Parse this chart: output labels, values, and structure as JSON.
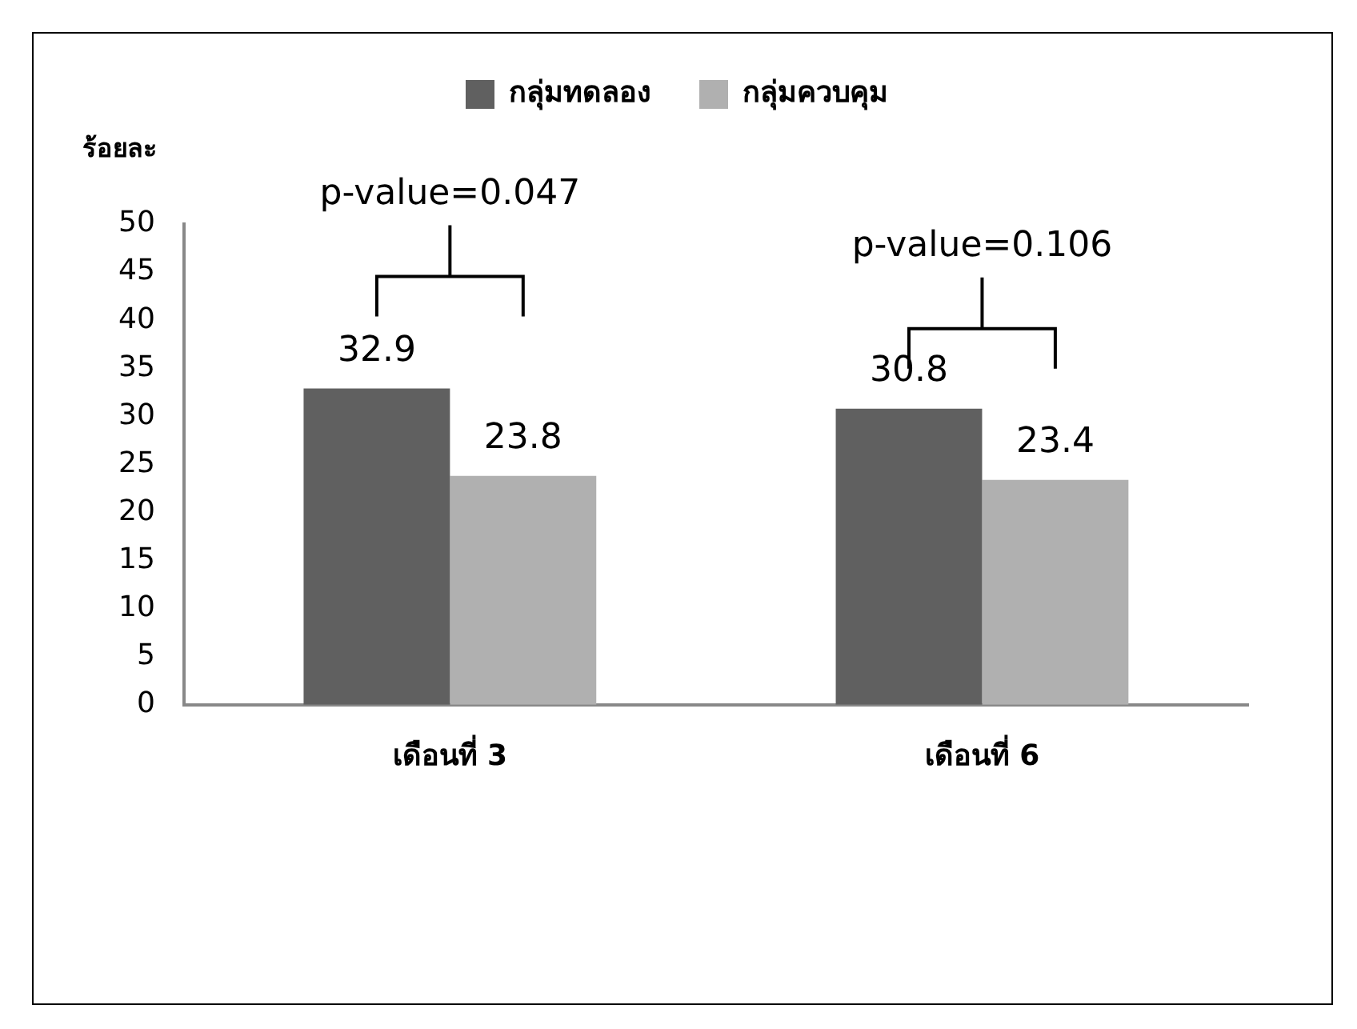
{
  "chart_data": {
    "type": "bar",
    "ylabel": "ร้อยละ",
    "categories": [
      "เดือนที่ 3",
      "เดือนที่ 6"
    ],
    "series": [
      {
        "name": "กลุ่มทดลอง",
        "color": "#606060",
        "values": [
          32.9,
          30.8
        ]
      },
      {
        "name": "กลุ่มควบคุม",
        "color": "#b0b0b0",
        "values": [
          23.8,
          23.4
        ]
      }
    ],
    "ylim": [
      0,
      50
    ],
    "yticks": [
      0,
      5,
      10,
      15,
      20,
      25,
      30,
      35,
      40,
      45,
      50
    ],
    "grid": false,
    "legend": "top",
    "data_labels": true,
    "annotations": [
      "p-value=0.047",
      "p-value=0.106"
    ]
  }
}
